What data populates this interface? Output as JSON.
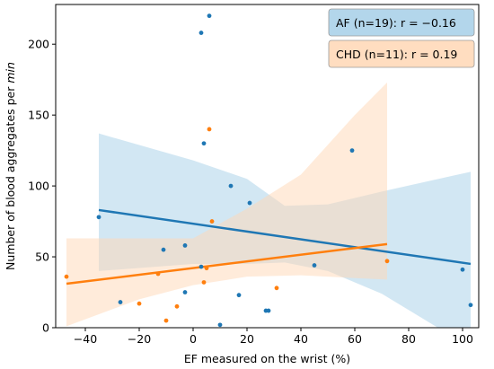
{
  "chart_data": {
    "type": "scatter",
    "xlabel": "EF measured on the wrist (%)",
    "ylabel_main": "Number of blood aggregates per ",
    "ylabel_italic": "min",
    "xlim": [
      -51,
      106
    ],
    "ylim": [
      0,
      228
    ],
    "x_ticks": [
      -40,
      -20,
      0,
      20,
      40,
      60,
      80,
      100
    ],
    "y_ticks": [
      0,
      50,
      100,
      150,
      200
    ],
    "grid": false,
    "legend_placement": "top-right",
    "series": [
      {
        "name": "AF (n=19): r = −0.16",
        "color": "#1f77b4",
        "band_color": "#a6cfe8",
        "points": [
          {
            "x": -35,
            "y": 78
          },
          {
            "x": -27,
            "y": 18
          },
          {
            "x": -11,
            "y": 55
          },
          {
            "x": -3,
            "y": 58
          },
          {
            "x": -3,
            "y": 25
          },
          {
            "x": 3,
            "y": 43
          },
          {
            "x": 3,
            "y": 208
          },
          {
            "x": 4,
            "y": 130
          },
          {
            "x": 6,
            "y": 220
          },
          {
            "x": 10,
            "y": 2
          },
          {
            "x": 14,
            "y": 100
          },
          {
            "x": 17,
            "y": 23
          },
          {
            "x": 21,
            "y": 88
          },
          {
            "x": 27,
            "y": 12
          },
          {
            "x": 28,
            "y": 12
          },
          {
            "x": 45,
            "y": 44
          },
          {
            "x": 59,
            "y": 125
          },
          {
            "x": 100,
            "y": 41
          },
          {
            "x": 103,
            "y": 16
          }
        ],
        "fit": {
          "x": [
            -35,
            103
          ],
          "y": [
            83,
            45
          ]
        },
        "band_upper": [
          {
            "x": -35,
            "y": 137
          },
          {
            "x": 0,
            "y": 118
          },
          {
            "x": 20,
            "y": 105
          },
          {
            "x": 34,
            "y": 86
          },
          {
            "x": 50,
            "y": 87
          },
          {
            "x": 70,
            "y": 96
          },
          {
            "x": 103,
            "y": 110
          }
        ],
        "band_lower": [
          {
            "x": -35,
            "y": 40
          },
          {
            "x": 0,
            "y": 45
          },
          {
            "x": 20,
            "y": 45
          },
          {
            "x": 34,
            "y": 46
          },
          {
            "x": 50,
            "y": 40
          },
          {
            "x": 70,
            "y": 24
          },
          {
            "x": 103,
            "y": -14
          }
        ]
      },
      {
        "name": "CHD (n=11): r = 0.19",
        "color": "#ff7f0e",
        "band_color": "#ffd7b5",
        "points": [
          {
            "x": -47,
            "y": 36
          },
          {
            "x": -20,
            "y": 17
          },
          {
            "x": -13,
            "y": 38
          },
          {
            "x": -10,
            "y": 5
          },
          {
            "x": -6,
            "y": 15
          },
          {
            "x": 4,
            "y": 32
          },
          {
            "x": 5,
            "y": 42
          },
          {
            "x": 6,
            "y": 140
          },
          {
            "x": 7,
            "y": 75
          },
          {
            "x": 31,
            "y": 28
          },
          {
            "x": 72,
            "y": 47
          }
        ],
        "fit": {
          "x": [
            -47,
            72
          ],
          "y": [
            31,
            59
          ]
        },
        "band_upper": [
          {
            "x": -47,
            "y": 63
          },
          {
            "x": -20,
            "y": 63
          },
          {
            "x": 0,
            "y": 63
          },
          {
            "x": 20,
            "y": 84
          },
          {
            "x": 40,
            "y": 108
          },
          {
            "x": 60,
            "y": 150
          },
          {
            "x": 72,
            "y": 173
          }
        ],
        "band_lower": [
          {
            "x": -47,
            "y": 1
          },
          {
            "x": -20,
            "y": 20
          },
          {
            "x": 0,
            "y": 30
          },
          {
            "x": 20,
            "y": 36
          },
          {
            "x": 40,
            "y": 37
          },
          {
            "x": 60,
            "y": 35
          },
          {
            "x": 72,
            "y": 34
          }
        ]
      }
    ]
  }
}
